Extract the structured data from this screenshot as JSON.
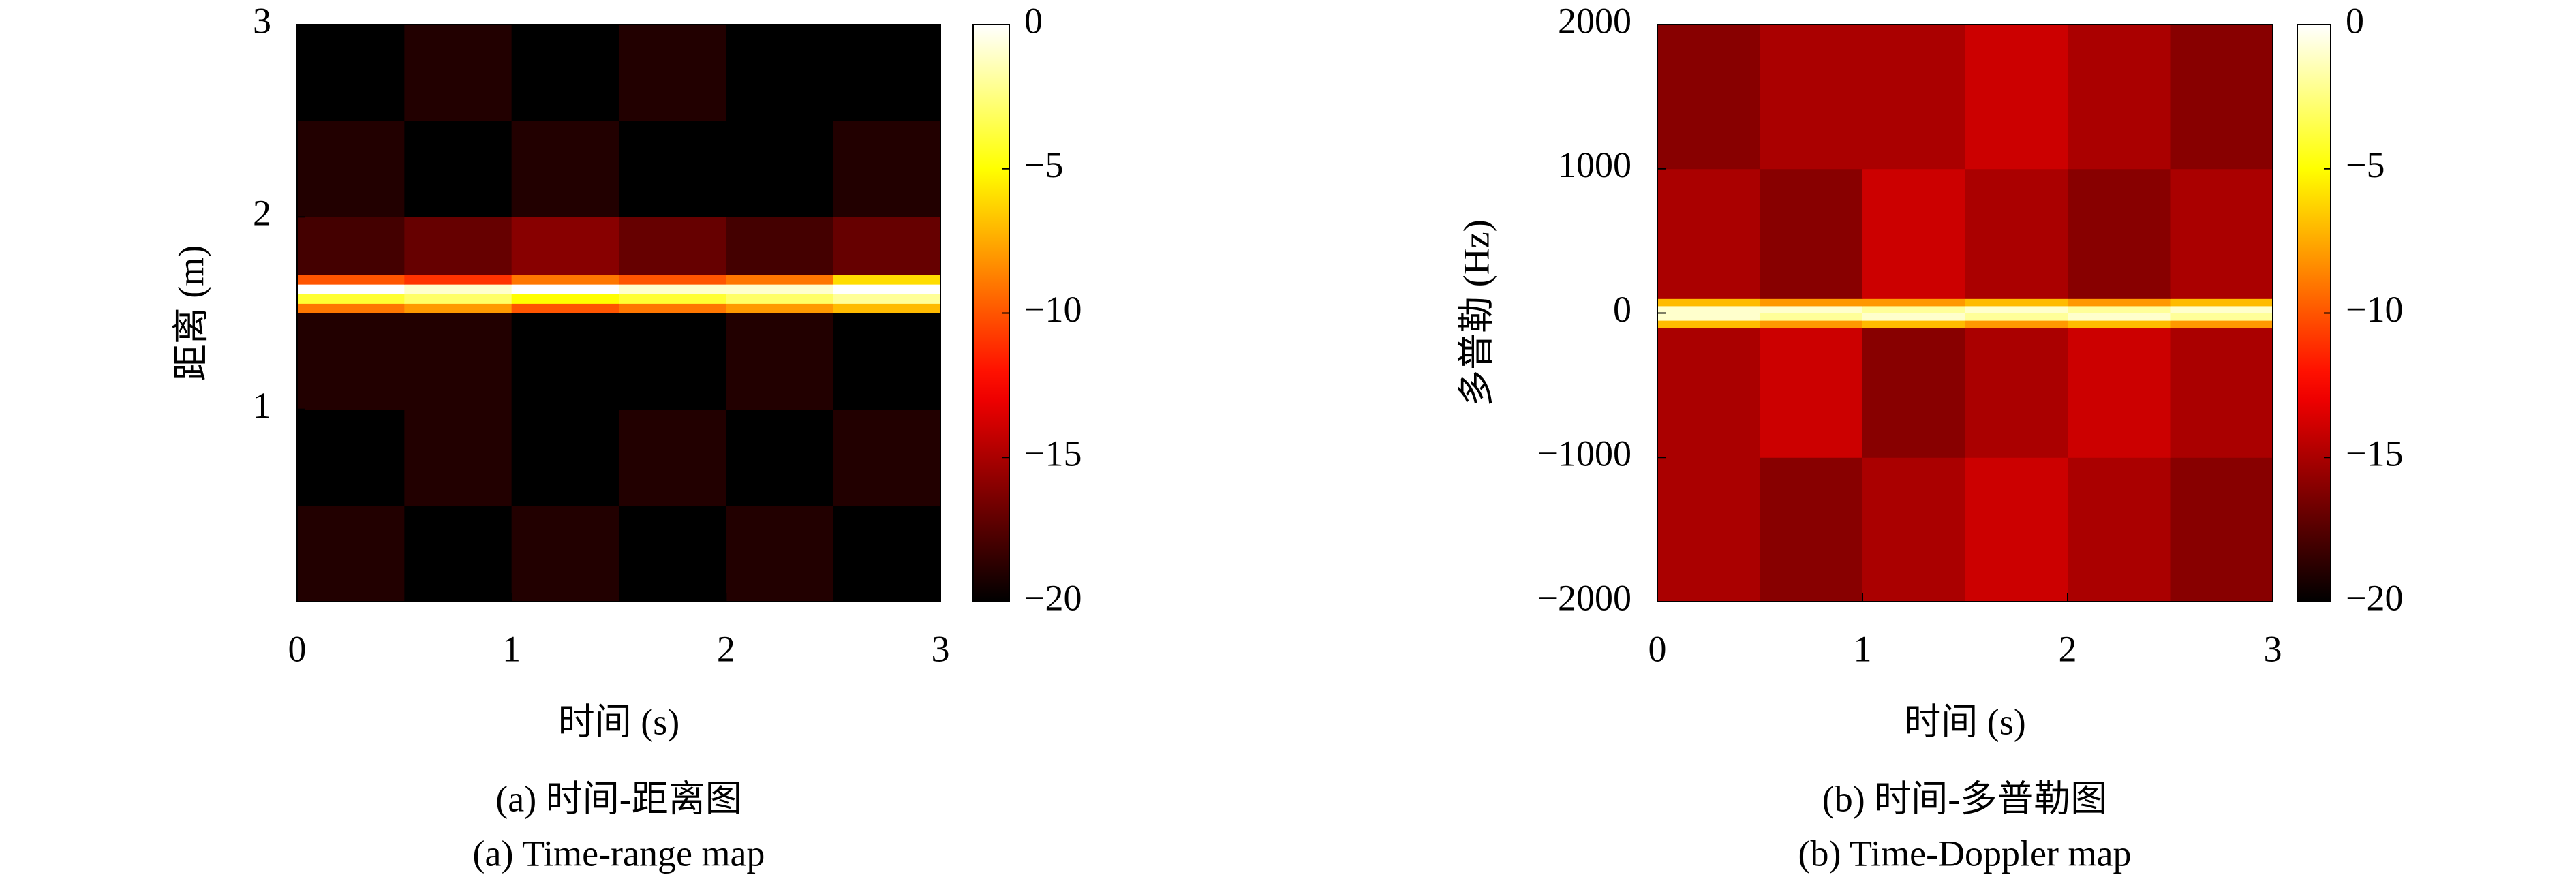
{
  "chart_data": [
    {
      "type": "heatmap",
      "xlabel": "时间 (s)",
      "ylabel": "距离 (m)",
      "caption": "(a) 时间-距离图",
      "caption_en": "(a) Time-range map",
      "colormap": "hot",
      "xbins": [
        0,
        0.5,
        1,
        1.5,
        2,
        2.5,
        3
      ],
      "ybins": [
        0,
        0.5,
        1,
        1.5,
        1.55,
        1.6,
        1.65,
        1.7,
        2,
        2.5,
        3
      ],
      "z": [
        [
          -19,
          -20,
          -19,
          -20,
          -19,
          -20
        ],
        [
          -20,
          -19,
          -20,
          -19,
          -20,
          -19
        ],
        [
          -19,
          -19,
          -20,
          -20,
          -19,
          -20
        ],
        [
          -9,
          -8,
          -10,
          -9,
          -8,
          -7
        ],
        [
          -4,
          -3,
          -5,
          -4,
          -3,
          -2
        ],
        [
          0,
          -1,
          0,
          -1,
          -1,
          0
        ],
        [
          -10,
          -11,
          -9,
          -10,
          -9,
          -6
        ],
        [
          -18,
          -17,
          -16,
          -17,
          -18,
          -17
        ],
        [
          -19,
          -20,
          -19,
          -20,
          -20,
          -19
        ],
        [
          -20,
          -19,
          -20,
          -19,
          -20,
          -20
        ]
      ],
      "xlim": [
        0,
        3
      ],
      "ylim": [
        0,
        3
      ],
      "xticks": [
        0,
        1,
        2,
        3
      ],
      "yticks": [
        1,
        2,
        3
      ],
      "clim": [
        -20,
        0
      ],
      "cticks": [
        0,
        {
          "value": -5,
          "label": "−5"
        },
        {
          "value": -10,
          "label": "−10"
        },
        {
          "value": -15,
          "label": "−15"
        },
        {
          "value": -20,
          "label": "−20"
        }
      ]
    },
    {
      "type": "heatmap",
      "xlabel": "时间 (s)",
      "ylabel": "多普勒 (Hz)",
      "caption": "(b) 时间-多普勒图",
      "caption_en": "(b) Time-Doppler map",
      "colormap": "hot",
      "xbins": [
        0,
        0.5,
        1,
        1.5,
        2,
        2.5,
        3
      ],
      "ybins": [
        -2000,
        -1000,
        -100,
        -50,
        0,
        50,
        100,
        1000,
        2000
      ],
      "z": [
        [
          -15,
          -16,
          -15,
          -14,
          -15,
          -16
        ],
        [
          -15,
          -14,
          -16,
          -15,
          -14,
          -15
        ],
        [
          -7,
          -8,
          -7,
          -8,
          -7,
          -8
        ],
        [
          -1,
          -2,
          -1,
          -2,
          -1,
          -2
        ],
        [
          -1,
          -1,
          -2,
          -1,
          -2,
          -1
        ],
        [
          -7,
          -8,
          -8,
          -7,
          -8,
          -7
        ],
        [
          -15,
          -16,
          -14,
          -15,
          -16,
          -15
        ],
        [
          -16,
          -15,
          -15,
          -14,
          -15,
          -16
        ]
      ],
      "xlim": [
        0,
        3
      ],
      "ylim": [
        -2000,
        2000
      ],
      "xticks": [
        0,
        1,
        2,
        3
      ],
      "yticks": [
        {
          "value": -2000,
          "label": "−2000"
        },
        {
          "value": -1000,
          "label": "−1000"
        },
        0,
        1000,
        2000
      ],
      "clim": [
        -20,
        0
      ],
      "cticks": [
        0,
        {
          "value": -5,
          "label": "−5"
        },
        {
          "value": -10,
          "label": "−10"
        },
        {
          "value": -15,
          "label": "−15"
        },
        {
          "value": -20,
          "label": "−20"
        }
      ]
    }
  ]
}
